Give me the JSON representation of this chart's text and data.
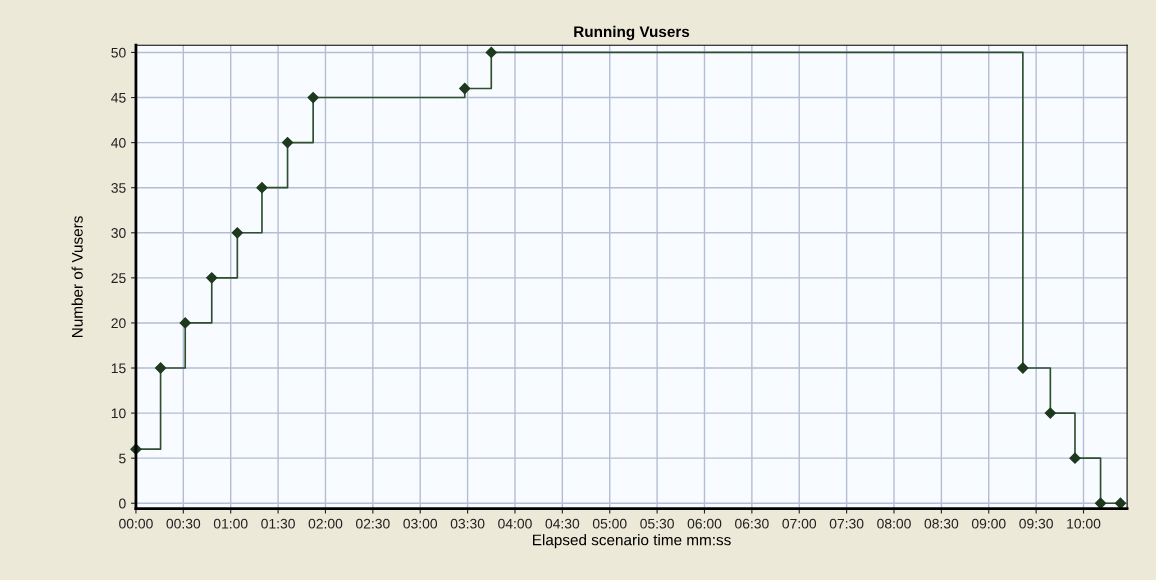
{
  "chart_data": {
    "type": "step",
    "title": "Running Vusers",
    "xlabel": "Elapsed scenario time mm:ss",
    "ylabel": "Number of Vusers",
    "x": [
      0,
      0.26,
      0.52,
      0.8,
      1.07,
      1.33,
      1.6,
      1.87,
      3.47,
      3.75,
      9.36,
      9.65,
      9.91,
      10.18,
      10.39
    ],
    "series": [
      {
        "color": "#2f4f2f",
        "values": [
          6,
          15,
          20,
          25,
          30,
          35,
          40,
          45,
          46,
          50,
          15,
          10,
          5,
          0,
          0
        ]
      }
    ],
    "xlim": [
      0,
      10.46
    ],
    "ylim": [
      -0.6,
      50.8
    ],
    "xticks": [
      {
        "value": 0,
        "label": "00:00"
      },
      {
        "value": 0.5,
        "label": "00:30"
      },
      {
        "value": 1,
        "label": "01:00"
      },
      {
        "value": 1.5,
        "label": "01:30"
      },
      {
        "value": 2,
        "label": "02:00"
      },
      {
        "value": 2.5,
        "label": "02:30"
      },
      {
        "value": 3,
        "label": "03:00"
      },
      {
        "value": 3.5,
        "label": "03:30"
      },
      {
        "value": 4,
        "label": "04:00"
      },
      {
        "value": 4.5,
        "label": "04:30"
      },
      {
        "value": 5,
        "label": "05:00"
      },
      {
        "value": 5.5,
        "label": "05:30"
      },
      {
        "value": 6,
        "label": "06:00"
      },
      {
        "value": 6.5,
        "label": "06:30"
      },
      {
        "value": 7,
        "label": "07:00"
      },
      {
        "value": 7.5,
        "label": "07:30"
      },
      {
        "value": 8,
        "label": "08:00"
      },
      {
        "value": 8.5,
        "label": "08:30"
      },
      {
        "value": 9,
        "label": "09:00"
      },
      {
        "value": 9.5,
        "label": "09:30"
      },
      {
        "value": 10,
        "label": "10:00"
      }
    ],
    "yticks": [
      0,
      5,
      10,
      15,
      20,
      25,
      30,
      35,
      40,
      45,
      50
    ],
    "grid": true,
    "marker": "diamond",
    "line_style": "solid"
  }
}
